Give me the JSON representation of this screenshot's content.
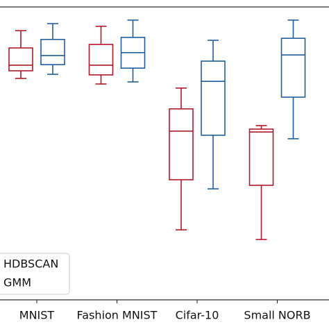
{
  "chart_data": {
    "type": "box",
    "categories": [
      "MNIST",
      "Fashion MNIST",
      "Cifar-10",
      "Small NORB"
    ],
    "ylim": [
      0,
      1
    ],
    "legend": "lower left",
    "series": [
      {
        "name": "HDBSCAN",
        "color": "#b2182b",
        "max": [
          0.919,
          0.934,
          0.723,
          0.595
        ],
        "q3": [
          0.86,
          0.872,
          0.652,
          0.583
        ],
        "median": [
          0.801,
          0.801,
          0.576,
          0.573
        ],
        "q1": [
          0.782,
          0.768,
          0.41,
          0.391
        ],
        "min": [
          0.756,
          0.737,
          0.239,
          0.206
        ]
      },
      {
        "name": "GMM",
        "color": "#1f5f9f",
        "max": [
          0.943,
          0.955,
          0.886,
          0.955
        ],
        "q3": [
          0.889,
          0.896,
          0.815,
          0.893
        ],
        "median": [
          0.834,
          0.844,
          0.746,
          0.836
        ],
        "q1": [
          0.803,
          0.791,
          0.562,
          0.692
        ],
        "min": [
          0.77,
          0.744,
          0.379,
          0.55
        ]
      }
    ]
  }
}
